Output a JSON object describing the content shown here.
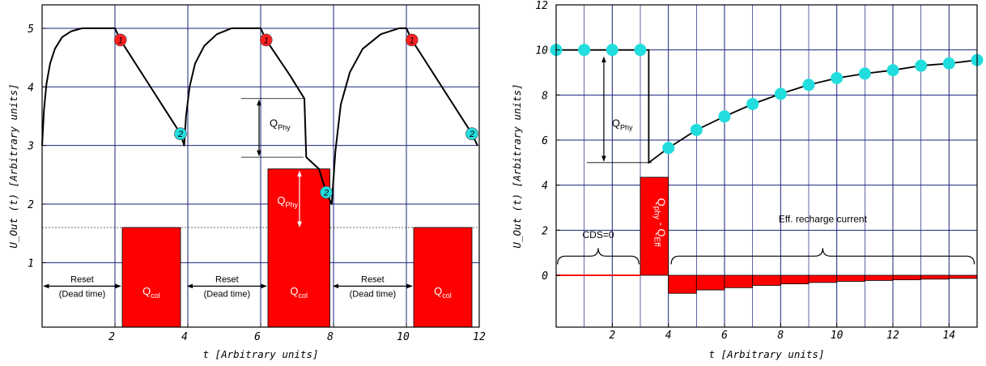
{
  "chart_data": [
    {
      "type": "line",
      "title": "",
      "xlabel": "t [Arbitrary units]",
      "ylabel": "U_Out (t) [Arbitrary units]",
      "xlim": [
        0,
        12
      ],
      "ylim": [
        -0.1,
        5.4
      ],
      "x_ticks": [
        "2",
        "4",
        "6",
        "8",
        "10",
        "12"
      ],
      "y_ticks": [
        "1",
        "2",
        "3",
        "4",
        "5"
      ],
      "grid": true,
      "threshold_level": 1.6,
      "waveform": [
        [
          0,
          3.0
        ],
        [
          0.05,
          3.6
        ],
        [
          0.12,
          4.05
        ],
        [
          0.22,
          4.4
        ],
        [
          0.35,
          4.65
        ],
        [
          0.55,
          4.85
        ],
        [
          0.8,
          4.95
        ],
        [
          1.1,
          5.0
        ],
        [
          2.0,
          5.0
        ],
        [
          2.15,
          4.8
        ],
        [
          3.8,
          3.2
        ],
        [
          3.9,
          3.0
        ],
        [
          3.95,
          3.5
        ],
        [
          4.05,
          4.0
        ],
        [
          4.2,
          4.4
        ],
        [
          4.45,
          4.7
        ],
        [
          4.8,
          4.9
        ],
        [
          5.2,
          5.0
        ],
        [
          6.0,
          5.0
        ],
        [
          6.15,
          4.8
        ],
        [
          6.8,
          4.2
        ],
        [
          7.2,
          3.8
        ],
        [
          7.25,
          2.8
        ],
        [
          7.6,
          2.6
        ],
        [
          7.8,
          2.2
        ],
        [
          7.95,
          2.0
        ],
        [
          8.05,
          2.9
        ],
        [
          8.2,
          3.7
        ],
        [
          8.45,
          4.25
        ],
        [
          8.8,
          4.65
        ],
        [
          9.3,
          4.9
        ],
        [
          9.8,
          5.0
        ],
        [
          10.0,
          5.0
        ],
        [
          10.15,
          4.8
        ],
        [
          11.8,
          3.2
        ],
        [
          11.95,
          3.0
        ]
      ],
      "markers": [
        {
          "label": "1",
          "x": 2.15,
          "y": 4.8,
          "color": "#ff2020"
        },
        {
          "label": "2",
          "x": 3.8,
          "y": 3.2,
          "color": "#22dddd"
        },
        {
          "label": "1",
          "x": 6.15,
          "y": 4.8,
          "color": "#ff2020"
        },
        {
          "label": "2",
          "x": 7.8,
          "y": 2.2,
          "color": "#22dddd"
        },
        {
          "label": "1",
          "x": 10.15,
          "y": 4.8,
          "color": "#ff2020"
        },
        {
          "label": "2",
          "x": 11.8,
          "y": 3.2,
          "color": "#22dddd"
        }
      ],
      "bars": [
        {
          "label": "Q",
          "sub": "col",
          "x0": 2.2,
          "x1": 3.8,
          "y0": -0.1,
          "y1": 1.6
        },
        {
          "label": "Q",
          "sub": "col",
          "x0": 6.2,
          "x1": 7.9,
          "y0": -0.1,
          "y1": 2.6
        },
        {
          "label": "Q",
          "sub": "col",
          "x0": 10.2,
          "x1": 11.8,
          "y0": -0.1,
          "y1": 1.6
        }
      ],
      "reset_labels": [
        {
          "line1": "Reset",
          "line2": "(Dead time)",
          "x0": 0.0,
          "x1": 2.2
        },
        {
          "line1": "Reset",
          "line2": "(Dead time)",
          "x0": 3.95,
          "x1": 6.2
        },
        {
          "line1": "Reset",
          "line2": "(Dead time)",
          "x0": 7.95,
          "x1": 10.2
        }
      ],
      "annotations": [
        {
          "text": "Q",
          "sub": "Phy"
        },
        {
          "text": "Q",
          "sub": "Phy"
        }
      ],
      "colors": {
        "bar": "#ff0000",
        "grid": "#1a237e",
        "marker_red": "#ff2020",
        "marker_cyan": "#22dddd"
      }
    },
    {
      "type": "line",
      "title": "",
      "xlabel": "t [Arbitrary units]",
      "ylabel": "U_Out (t) [Arbitrary units]",
      "xlim": [
        0,
        15
      ],
      "ylim": [
        -2.3,
        12
      ],
      "x_ticks": [
        "2",
        "4",
        "6",
        "8",
        "10",
        "12",
        "14"
      ],
      "y_ticks": [
        "0",
        "2",
        "4",
        "6",
        "8",
        "10",
        "12"
      ],
      "grid": true,
      "points_flat": [
        [
          0,
          10
        ],
        [
          1,
          10
        ],
        [
          2,
          10
        ],
        [
          3,
          10
        ]
      ],
      "points_recharge": [
        [
          4,
          5.65
        ],
        [
          5,
          6.45
        ],
        [
          6,
          7.05
        ],
        [
          7,
          7.6
        ],
        [
          8,
          8.05
        ],
        [
          9,
          8.45
        ],
        [
          10,
          8.75
        ],
        [
          11,
          8.95
        ],
        [
          12,
          9.1
        ],
        [
          13,
          9.3
        ],
        [
          14,
          9.4
        ],
        [
          15,
          9.55
        ]
      ],
      "waveform": [
        [
          0,
          10
        ],
        [
          3.3,
          10
        ],
        [
          3.3,
          5.0
        ],
        [
          4,
          5.65
        ],
        [
          5,
          6.45
        ],
        [
          6,
          7.05
        ],
        [
          7,
          7.6
        ],
        [
          8,
          8.05
        ],
        [
          9,
          8.45
        ],
        [
          10,
          8.75
        ],
        [
          11,
          8.95
        ],
        [
          12,
          9.1
        ],
        [
          13,
          9.3
        ],
        [
          14,
          9.4
        ],
        [
          15,
          9.55
        ]
      ],
      "baseline": {
        "x0": 0,
        "x1": 3,
        "y": 0
      },
      "bar_positive": {
        "x0": 3,
        "x1": 4,
        "y": 4.35,
        "label": "Q",
        "sub": "phy",
        "label2": "- Q",
        "sub2": "Eff"
      },
      "bars_negative": [
        {
          "x0": 4,
          "x1": 5,
          "y": -0.8
        },
        {
          "x0": 5,
          "x1": 6,
          "y": -0.65
        },
        {
          "x0": 6,
          "x1": 7,
          "y": -0.55
        },
        {
          "x0": 7,
          "x1": 8,
          "y": -0.45
        },
        {
          "x0": 8,
          "x1": 9,
          "y": -0.38
        },
        {
          "x0": 9,
          "x1": 10,
          "y": -0.32
        },
        {
          "x0": 10,
          "x1": 11,
          "y": -0.27
        },
        {
          "x0": 11,
          "x1": 12,
          "y": -0.23
        },
        {
          "x0": 12,
          "x1": 13,
          "y": -0.2
        },
        {
          "x0": 13,
          "x1": 14,
          "y": -0.17
        },
        {
          "x0": 14,
          "x1": 15,
          "y": -0.14
        }
      ],
      "annotations": [
        {
          "text": "Q",
          "sub": "Phy"
        },
        {
          "text": "CDS=0"
        },
        {
          "text": "Eff. recharge current"
        }
      ],
      "colors": {
        "bar": "#ff0000",
        "point": "#22dddd",
        "grid": "#1a237e"
      }
    }
  ]
}
